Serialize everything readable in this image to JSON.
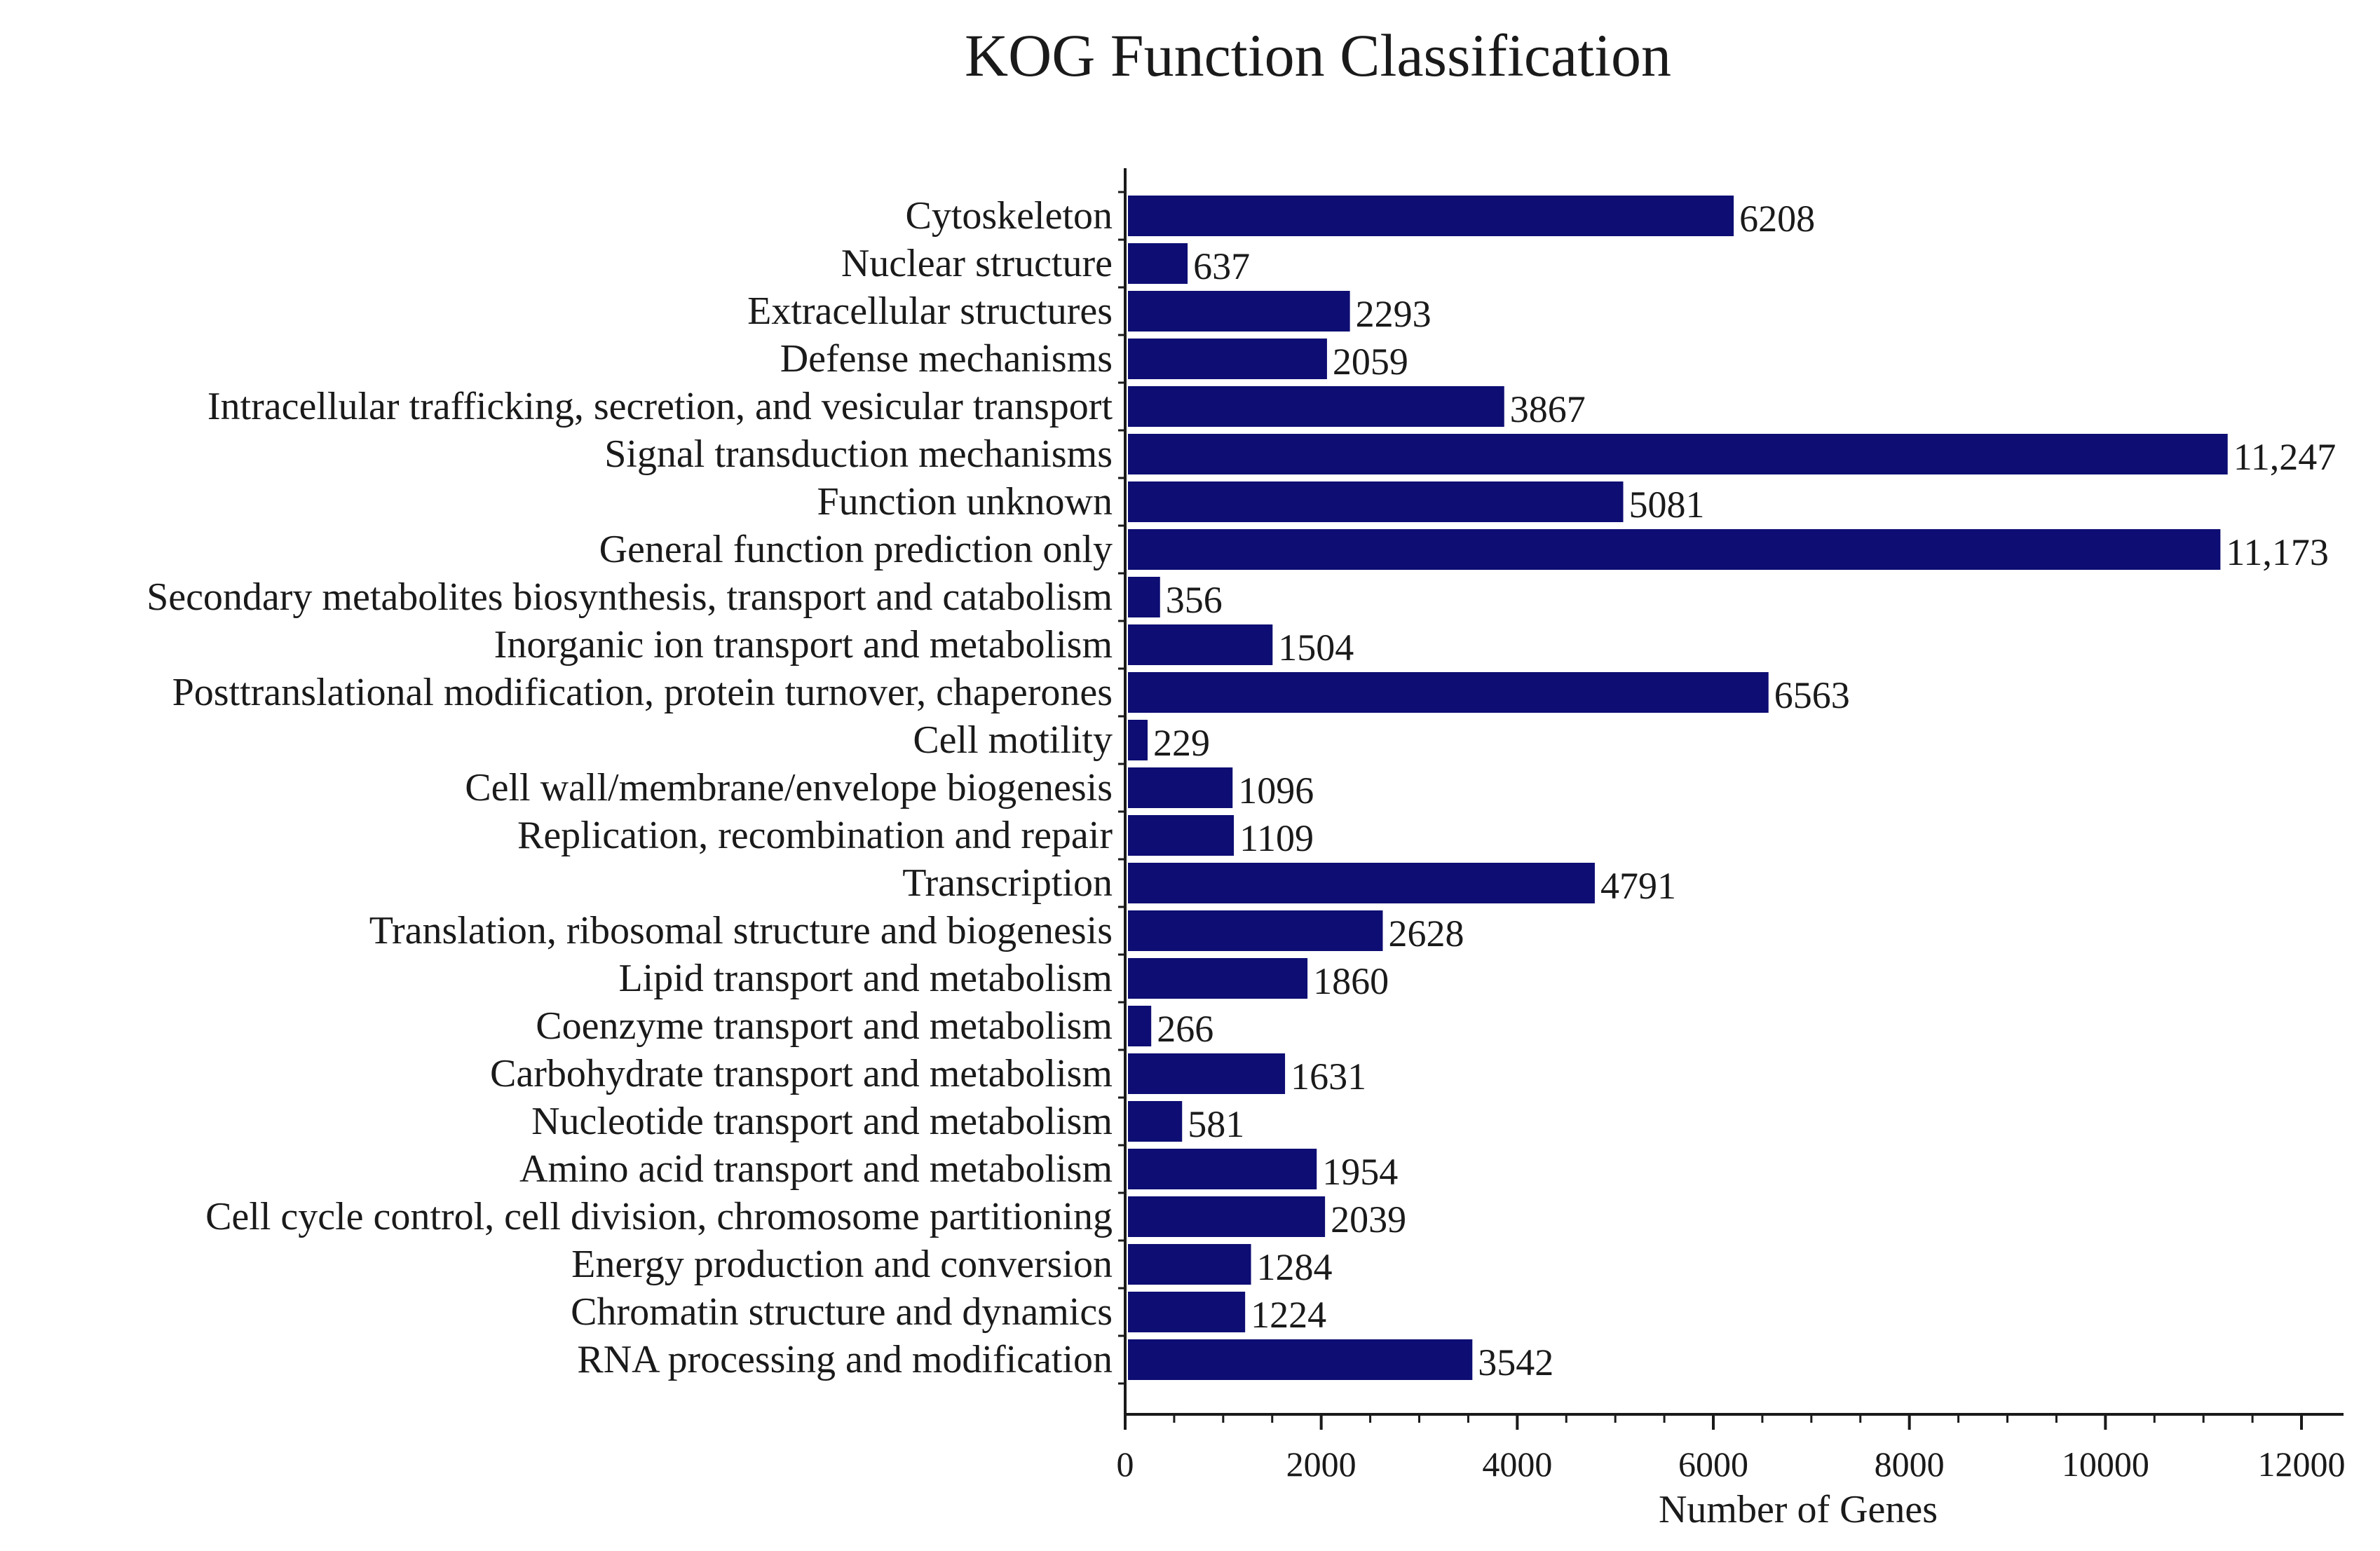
{
  "chart_data": {
    "type": "bar",
    "orientation": "horizontal",
    "title": "KOG Function Classification",
    "xlabel": "Number of Genes",
    "ylabel": "",
    "xlim": [
      0,
      12000
    ],
    "x_ticks": [
      0,
      2000,
      4000,
      6000,
      8000,
      10000,
      12000
    ],
    "x_tick_labels": [
      "0",
      "2000",
      "4000",
      "6000",
      "8000",
      "10000",
      "12000"
    ],
    "grid": false,
    "bar_color": "#0d0d73",
    "categories": [
      "Cytoskeleton",
      "Nuclear structure",
      "Extracellular structures",
      "Defense mechanisms",
      "Intracellular trafficking, secretion, and vesicular transport",
      "Signal transduction mechanisms",
      "Function unknown",
      "General function prediction only",
      "Secondary metabolites biosynthesis, transport and catabolism",
      "Inorganic ion transport and metabolism",
      "Posttranslational modification, protein turnover, chaperones",
      "Cell motility",
      "Cell wall/membrane/envelope biogenesis",
      "Replication, recombination and repair",
      "Transcription",
      "Translation, ribosomal structure and biogenesis",
      "Lipid transport and metabolism",
      "Coenzyme transport and metabolism",
      "Carbohydrate transport and metabolism",
      "Nucleotide transport and metabolism",
      "Amino acid transport and metabolism",
      "Cell cycle control, cell division, chromosome partitioning",
      "Energy production and conversion",
      "Chromatin structure and dynamics",
      "RNA processing and modification"
    ],
    "values": [
      6208,
      637,
      2293,
      2059,
      3867,
      11247,
      5081,
      11173,
      356,
      1504,
      6563,
      229,
      1096,
      1109,
      4791,
      2628,
      1860,
      266,
      1631,
      581,
      1954,
      2039,
      1284,
      1224,
      3542
    ],
    "value_labels": [
      "6208",
      "637",
      "2293",
      "2059",
      "3867",
      "11,247",
      "5081",
      "11,173",
      "356",
      "1504",
      "6563",
      "229",
      "1096",
      "1109",
      "4791",
      "2628",
      "1860",
      "266",
      "1631",
      "581",
      "1954",
      "2039",
      "1284",
      "1224",
      "3542"
    ]
  }
}
